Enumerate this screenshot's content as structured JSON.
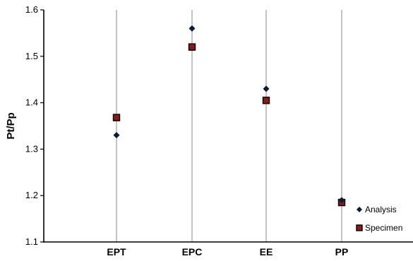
{
  "chart_data": {
    "type": "scatter",
    "title": "",
    "xlabel": "",
    "ylabel": "Pt/Pp",
    "categories": [
      "EPT",
      "EPC",
      "EE",
      "PP"
    ],
    "ylim": [
      1.1,
      1.6
    ],
    "yticks": [
      "1.1",
      "1.2",
      "1.3",
      "1.4",
      "1.5",
      "1.6"
    ],
    "grid": "vertical",
    "legend_position": "bottom-right",
    "series": [
      {
        "name": "Analysis",
        "marker": "diamond",
        "color": "#0d1b2e",
        "values": [
          1.33,
          1.56,
          1.43,
          1.19
        ]
      },
      {
        "name": "Specimen",
        "marker": "square",
        "color": "#8b1a1a",
        "edge_color": "#000000",
        "values": [
          1.368,
          1.52,
          1.405,
          1.185
        ]
      }
    ]
  }
}
